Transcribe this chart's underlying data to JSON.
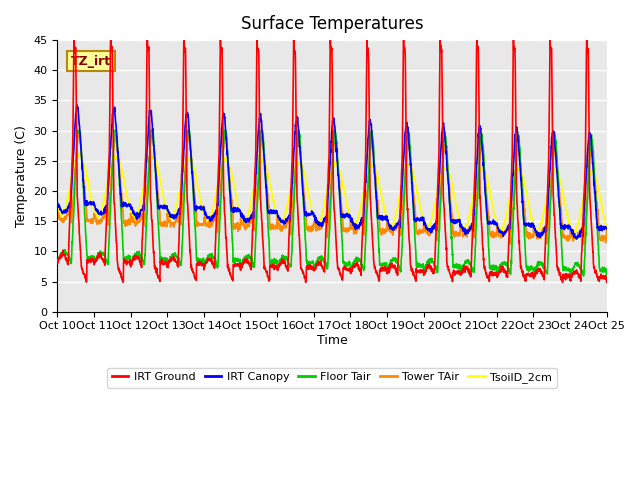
{
  "title": "Surface Temperatures",
  "xlabel": "Time",
  "ylabel": "Temperature (C)",
  "ylim": [
    0,
    45
  ],
  "yticks": [
    0,
    5,
    10,
    15,
    20,
    25,
    30,
    35,
    40,
    45
  ],
  "x_tick_labels": [
    "Oct 10",
    "Oct 11",
    "Oct 12",
    "Oct 13",
    "Oct 14",
    "Oct 15",
    "Oct 16",
    "Oct 17",
    "Oct 18",
    "Oct 19",
    "Oct 20",
    "Oct 21",
    "Oct 22",
    "Oct 23",
    "Oct 24",
    "Oct 25"
  ],
  "annotation_text": "TZ_irt",
  "series": {
    "IRT Ground": {
      "color": "#ff0000",
      "linewidth": 1.2
    },
    "IRT Canopy": {
      "color": "#0000ff",
      "linewidth": 1.2
    },
    "Floor Tair": {
      "color": "#00cc00",
      "linewidth": 1.2
    },
    "Tower TAir": {
      "color": "#ff8800",
      "linewidth": 1.2
    },
    "TsoilD_2cm": {
      "color": "#ffff00",
      "linewidth": 1.2
    }
  },
  "n_days": 15,
  "points_per_day": 144,
  "background_color": "#e8e8e8",
  "grid_color": "white",
  "title_fontsize": 12,
  "axis_label_fontsize": 9,
  "tick_fontsize": 8
}
